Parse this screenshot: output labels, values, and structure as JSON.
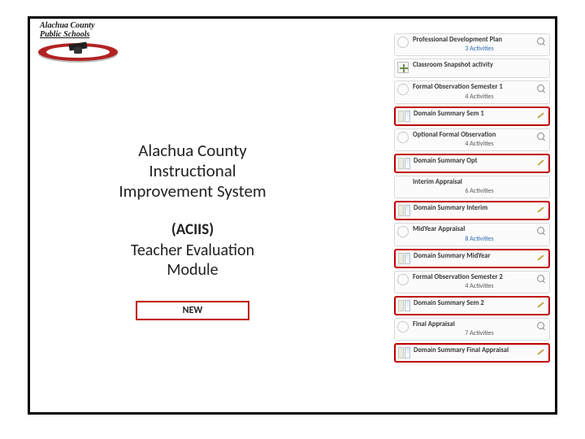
{
  "logo": {
    "line1": "Alachua County",
    "line2": "Public Schools"
  },
  "title": {
    "line1": "Alachua County",
    "line2": "Instructional",
    "line3": "Improvement System",
    "acronym": "(ACIIS)",
    "sub1": "Teacher Evaluation",
    "sub2": "Module",
    "badge": "NEW"
  },
  "colors": {
    "border": "#000000",
    "highlight": "#c00000",
    "link": "#2a6ab0",
    "logo_red": "#b22222"
  },
  "panels": [
    {
      "title": "Professional Development Plan",
      "sub": "3 Activities",
      "sub_style": "link",
      "icon": "ring",
      "action": "mag",
      "highlight": false
    },
    {
      "title": "Classroom Snapshot activity",
      "sub": "",
      "sub_style": "",
      "icon": "plus",
      "action": "",
      "highlight": false
    },
    {
      "title": "Formal Observation Semester 1",
      "sub": "4 Activities",
      "sub_style": "gray",
      "icon": "ring",
      "action": "mag",
      "highlight": false
    },
    {
      "title": "Domain Summary Sem 1",
      "sub": "",
      "sub_style": "",
      "icon": "doc",
      "action": "pencil",
      "highlight": true
    },
    {
      "title": "Optional Formal Observation",
      "sub": "4 Activities",
      "sub_style": "gray",
      "icon": "ring",
      "action": "mag",
      "highlight": false
    },
    {
      "title": "Domain Summary Opt",
      "sub": "",
      "sub_style": "",
      "icon": "doc",
      "action": "pencil",
      "highlight": true
    },
    {
      "title": "Interim Appraisal",
      "sub": "6 Activities",
      "sub_style": "gray",
      "icon": "none",
      "action": "",
      "highlight": false
    },
    {
      "title": "Domain Summary Interim",
      "sub": "",
      "sub_style": "",
      "icon": "doc",
      "action": "pencil",
      "highlight": true
    },
    {
      "title": "MidYear Appraisal",
      "sub": "8 Activities",
      "sub_style": "link",
      "icon": "ring",
      "action": "mag",
      "highlight": false
    },
    {
      "title": "Domain Summary MidYear",
      "sub": "",
      "sub_style": "",
      "icon": "doc",
      "action": "pencil",
      "highlight": true
    },
    {
      "title": "Formal Observation Semester 2",
      "sub": "4 Activities",
      "sub_style": "gray",
      "icon": "ring",
      "action": "mag",
      "highlight": false
    },
    {
      "title": "Domain Summary Sem 2",
      "sub": "",
      "sub_style": "",
      "icon": "doc",
      "action": "pencil",
      "highlight": true
    },
    {
      "title": "Final Appraisal",
      "sub": "7 Activities",
      "sub_style": "gray",
      "icon": "ring",
      "action": "mag",
      "highlight": false
    },
    {
      "title": "Domain Summary Final Appraisal",
      "sub": "",
      "sub_style": "",
      "icon": "doc",
      "action": "pencil",
      "highlight": true
    }
  ]
}
